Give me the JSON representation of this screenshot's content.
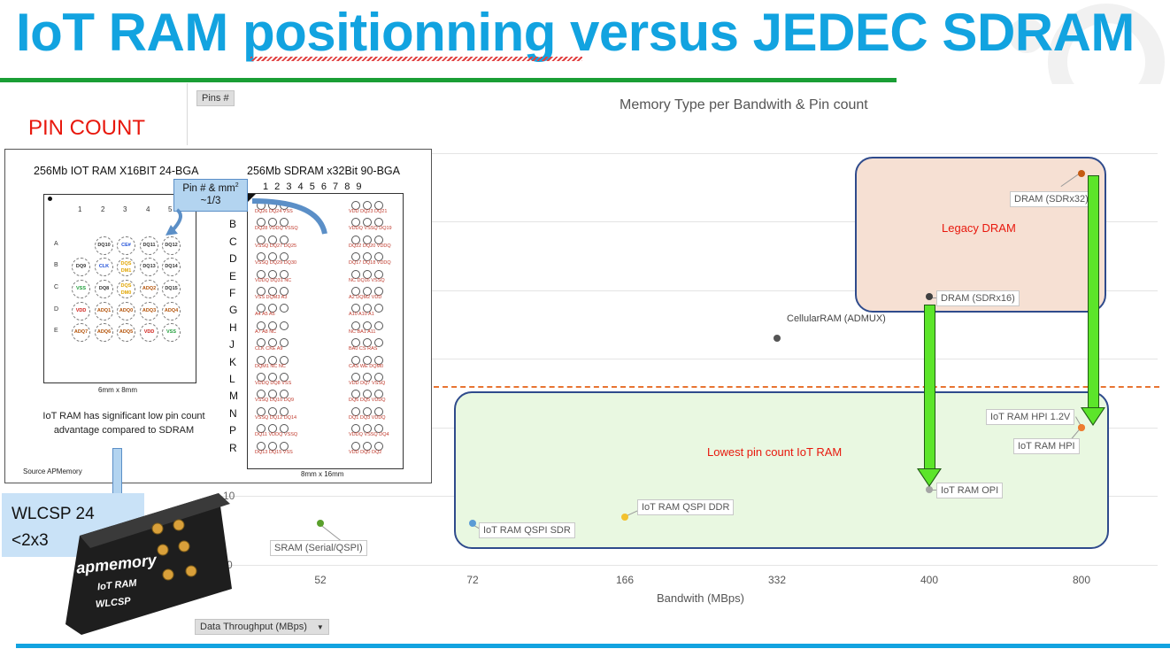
{
  "slide": {
    "title": "IoT RAM positionning versus JEDEC SDRAM",
    "pin_count_heading": "PIN COUNT"
  },
  "chart_controls": {
    "pins_button": "Pins #",
    "data_throughput_button": "Data Throughput (MBps)",
    "dropdown_icon": "triangle-down-icon"
  },
  "chart_data": {
    "type": "scatter",
    "title": "Memory Type per Bandwith & Pin count",
    "xlabel": "Bandwith (MBps)",
    "ylabel": "",
    "x_categories": [
      "52",
      "72",
      "166",
      "332",
      "400",
      "800"
    ],
    "y_ticks": [
      "10",
      "0"
    ],
    "points": [
      {
        "label": "SRAM (Serial/QSPI)",
        "x": "52",
        "y": 6,
        "color": "#5aa02c"
      },
      {
        "label": "IoT RAM QSPI SDR",
        "x": "72",
        "y": 6,
        "color": "#5b9bd5"
      },
      {
        "label": "IoT RAM QSPI DDR",
        "x": "166",
        "y": 7,
        "color": "#f2c12e"
      },
      {
        "label": "CellularRAM (ADMUX)",
        "x": "332",
        "y": 33,
        "color": "#555555"
      },
      {
        "label": "IoT RAM OPI",
        "x": "400",
        "y": 11,
        "color": "#a5a5a5"
      },
      {
        "label": "DRAM (SDRx16)",
        "x": "400",
        "y": 39,
        "color": "#404040"
      },
      {
        "label": "IoT RAM HPI 1.2V",
        "x": "800",
        "y": 20,
        "color": "#ed7d31"
      },
      {
        "label": "IoT RAM HPI",
        "x": "800",
        "y": 20,
        "color": "#ed7d31"
      },
      {
        "label": "DRAM (SDRx32)",
        "x": "800",
        "y": 57,
        "color": "#c55a11"
      }
    ],
    "zones": [
      {
        "label": "Legacy DRAM",
        "fill": "#f6e0d3"
      },
      {
        "label": "Lowest pin count IoT RAM",
        "fill": "#e9f8e1"
      }
    ]
  },
  "package_compare": {
    "iot_title": "256Mb IOT RAM X16BIT 24-BGA",
    "sdram_title": "256Mb SDRAM x32Bit 90-BGA",
    "callout": "Pin # & mm²\n~1/3",
    "iot_cols": [
      "1",
      "2",
      "3",
      "4",
      "5"
    ],
    "iot_rows": [
      "A",
      "B",
      "C",
      "D",
      "E"
    ],
    "iot_balls": [
      [
        "",
        "DQ10",
        "CE#",
        "DQ11",
        "DQ12"
      ],
      [
        "DQ9",
        "CLK",
        "DQS DM1",
        "DQ13",
        "DQ14"
      ],
      [
        "VSS",
        "DQ8",
        "DQS DM0",
        "ADQ2",
        "DQ15"
      ],
      [
        "VDD",
        "ADQ1",
        "ADQ0",
        "ADQ3",
        "ADQ4"
      ],
      [
        "ADQ7",
        "ADQ6",
        "ADQ5",
        "VDD",
        "VSS"
      ]
    ],
    "iot_size": "6mm x 8mm",
    "sdram_cols": "1 2 3 4 5 6 7 8 9",
    "sdram_rows": [
      "A",
      "B",
      "C",
      "D",
      "E",
      "F",
      "G",
      "H",
      "J",
      "K",
      "L",
      "M",
      "N",
      "P",
      "R"
    ],
    "sdram_left_labels": [
      "DQ26 DQ24 VSS",
      "DQ28 VDDQ VSSQ",
      "VSSQ DQ27 DQ25",
      "VSSQ DQ29 DQ30",
      "VDDQ DQ31 NC",
      "VSS DQM3 A3",
      "A4 A5 A6",
      "A7 A8 NC",
      "CLK CKE A9",
      "DQM1 NC NC",
      "VDDQ DQ8 VSS",
      "VSSQ DQ10 DQ9",
      "VSSQ DQ12 DQ14",
      "DQ11 VDDQ VSSQ",
      "DQ13 DQ15 VSS"
    ],
    "sdram_right_labels": [
      "VDD DQ23 DQ21",
      "VDDQ VSSQ DQ19",
      "DQ22 DQ20 VDDQ",
      "DQ17 DQ18 VDDQ",
      "NC DQ16 VSSQ",
      "A2 DQM2 VDD",
      "A10 A10 A1",
      "NC BA1 A11",
      "BA0 CS RAS",
      "CAS WE DQM0",
      "VDD DQ7 VSSQ",
      "DQ6 DQ5 VDDQ",
      "DQ1 DQ3 VDDQ",
      "VDDQ VSSQ DQ4",
      "VDD DQ0 DQ2"
    ],
    "sdram_size": "8mm x 16mm",
    "note": "IoT RAM has significant low pin count advantage compared to SDRAM",
    "source": "Source APMemory"
  },
  "wlcsp": {
    "line1": "WLCSP 24",
    "line2": "<2x3",
    "chip_brand": "apmemory",
    "chip_line2": "IoT RAM",
    "chip_line3": "WLCSP"
  }
}
